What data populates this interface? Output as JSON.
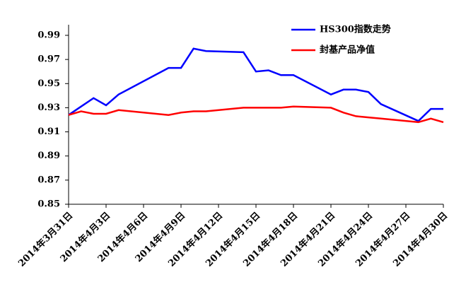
{
  "chart_data": {
    "type": "line",
    "x": [
      "2014-03-31",
      "2014-04-01",
      "2014-04-02",
      "2014-04-03",
      "2014-04-04",
      "2014-04-08",
      "2014-04-09",
      "2014-04-10",
      "2014-04-11",
      "2014-04-14",
      "2014-04-15",
      "2014-04-16",
      "2014-04-17",
      "2014-04-18",
      "2014-04-21",
      "2014-04-22",
      "2014-04-23",
      "2014-04-24",
      "2014-04-25",
      "2014-04-28",
      "2014-04-29",
      "2014-04-30"
    ],
    "series": [
      {
        "name": "HS300指数走势",
        "color": "#0000ff",
        "values": [
          0.924,
          0.931,
          0.938,
          0.932,
          0.941,
          0.963,
          0.963,
          0.979,
          0.977,
          0.976,
          0.96,
          0.961,
          0.957,
          0.957,
          0.941,
          0.945,
          0.945,
          0.943,
          0.933,
          0.919,
          0.929,
          0.929
        ]
      },
      {
        "name": "封基产品净值",
        "color": "#ff0000",
        "values": [
          0.924,
          0.927,
          0.925,
          0.925,
          0.928,
          0.924,
          0.926,
          0.927,
          0.927,
          0.93,
          0.93,
          0.93,
          0.93,
          0.931,
          0.93,
          0.926,
          0.923,
          0.922,
          0.921,
          0.918,
          0.921,
          0.918
        ]
      }
    ],
    "xlim": [
      "2014-03-31",
      "2014-04-30"
    ],
    "xticks": [
      {
        "value": "2014-03-31",
        "label": "2014年3月31日"
      },
      {
        "value": "2014-04-03",
        "label": "2014年4月3日"
      },
      {
        "value": "2014-04-06",
        "label": "2014年4月6日"
      },
      {
        "value": "2014-04-09",
        "label": "2014年4月9日"
      },
      {
        "value": "2014-04-12",
        "label": "2014年4月12日"
      },
      {
        "value": "2014-04-15",
        "label": "2014年4月15日"
      },
      {
        "value": "2014-04-18",
        "label": "2014年4月18日"
      },
      {
        "value": "2014-04-21",
        "label": "2014年4月21日"
      },
      {
        "value": "2014-04-24",
        "label": "2014年4月24日"
      },
      {
        "value": "2014-04-27",
        "label": "2014年4月27日"
      },
      {
        "value": "2014-04-30",
        "label": "2014年4月30日"
      }
    ],
    "ylim": [
      0.85,
      0.99
    ],
    "yticks": [
      0.85,
      0.87,
      0.89,
      0.91,
      0.93,
      0.95,
      0.97,
      0.99
    ],
    "legend": "top-right"
  }
}
